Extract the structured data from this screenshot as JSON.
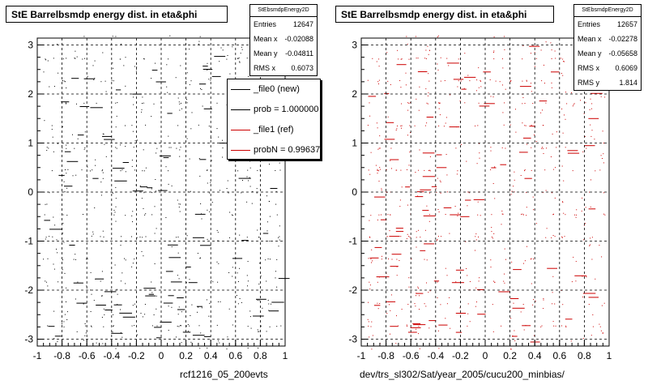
{
  "colors": {
    "ref": "#cc0000",
    "new": "#000000",
    "grid": "#000000"
  },
  "panels": [
    {
      "title": "StE Barrelbsmdp energy dist. in eta&phi",
      "xcaption": "rcf1216_05_200evts",
      "stats": {
        "name": "StEbsmdpEnergy2D",
        "rows": [
          {
            "label": "Entries",
            "value": "12647"
          },
          {
            "label": "Mean x",
            "value": "-0.02088"
          },
          {
            "label": "Mean y",
            "value": "-0.04811"
          },
          {
            "label": "RMS x",
            "value": "0.6073"
          }
        ]
      },
      "legend": [
        {
          "label": "_file0 (new)",
          "color": "#000000"
        },
        {
          "label": "prob = 1.000000",
          "color": "#000000"
        },
        {
          "label": "_file1 (ref)",
          "color": "#cc0000"
        },
        {
          "label": "probN = 0.996375",
          "color": "#cc0000"
        }
      ]
    },
    {
      "title": "StE Barrelbsmdp energy dist. in eta&phi",
      "xcaption": "dev/trs_sl302/Sat/year_2005/cucu200_minbias/",
      "stats": {
        "name": "StEbsmdpEnergy2D",
        "rows": [
          {
            "label": "Entries",
            "value": "12657"
          },
          {
            "label": "Mean x",
            "value": "-0.02278"
          },
          {
            "label": "Mean y",
            "value": "-0.05658"
          },
          {
            "label": "RMS x",
            "value": "0.6069"
          },
          {
            "label": "RMS y",
            "value": "1.814"
          }
        ]
      }
    }
  ],
  "chart_data": [
    {
      "type": "scatter",
      "title": "StE Barrelbsmdp energy dist. in eta&phi",
      "xlabel": "rcf1216_05_200evts",
      "ylabel": "",
      "xlim": [
        -1,
        1
      ],
      "ylim": [
        -3.14,
        3.14
      ],
      "xticks": [
        "-1",
        "-0.8",
        "-0.6",
        "-0.4",
        "-0.2",
        "0",
        "0.2",
        "0.4",
        "0.6",
        "0.8",
        "1"
      ],
      "yticks": [
        "-3",
        "-2",
        "-1",
        "0",
        "1",
        "2",
        "3"
      ],
      "grid": true,
      "series": [
        {
          "values": [],
          "color": "#000000",
          "entries": 12647
        }
      ]
    },
    {
      "type": "scatter",
      "title": "StE Barrelbsmdp energy dist. in eta&phi",
      "xlabel": "dev/trs_sl302/Sat/year_2005/cucu200_minbias/",
      "ylabel": "",
      "xlim": [
        -1,
        1
      ],
      "ylim": [
        -3.14,
        3.14
      ],
      "xticks": [
        "-1",
        "-0.8",
        "-0.6",
        "-0.4",
        "-0.2",
        "0",
        "0.2",
        "0.4",
        "0.6",
        "0.8",
        "1"
      ],
      "yticks": [
        "-3",
        "-2",
        "-1",
        "0",
        "1",
        "2",
        "3"
      ],
      "grid": true,
      "series": [
        {
          "values": [],
          "color": "#cc0000",
          "entries": 12657
        }
      ]
    }
  ]
}
